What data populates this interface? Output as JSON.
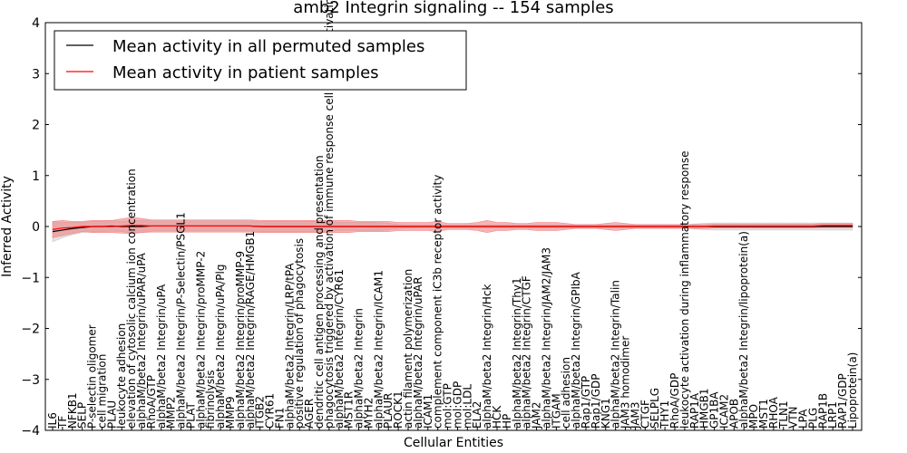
{
  "chart_data": {
    "type": "line",
    "title": "amb2 Integrin signaling -- 154 samples",
    "xlabel": "Cellular Entities",
    "ylabel": "Inferred Activity",
    "ylim": [
      -4,
      4
    ],
    "yticks": [
      "4",
      "3",
      "2",
      "1",
      "0",
      "−1",
      "−2",
      "−3",
      "−4"
    ],
    "legend_position": "top-left",
    "legend": [
      {
        "label": "Mean activity in all permuted samples",
        "color": "#000000"
      },
      {
        "label": "Mean activity in patient samples",
        "color": "#ff0000"
      }
    ],
    "band_colors": {
      "patient": "#f08080",
      "permuted": "#c0c0c0"
    },
    "categories": [
      "IL6",
      "TF",
      "NFKB1",
      "SELP",
      "P-selectin oligomer",
      "cell migration",
      "PLAU",
      "leukocyte adhesion",
      "elevation of cytosolic calcium ion concentration",
      "alphaM/beta2 Integrin/uPAR/uPA",
      "RhoA/GTP",
      "alphaM/beta2 Integrin/uPA",
      "MMP2",
      "alphaM/beta2 Integrin/P-Selectin/PSGL1",
      "PLAT",
      "alphaM/beta2 Integrin/proMMP-2",
      "fibrinolysis",
      "alphaM/beta2 Integrin/uPA/Plg",
      "MMP9",
      "alphaM/beta2 Integrin/proMMP-9",
      "alphaM/beta2 Integrin/RAGE/HMGB1",
      "ITGB2",
      "CYR61",
      "FN1",
      "alphaM/beta2 Integrin/LRP/tPA",
      "positive regulation of phagocytosis",
      "AGER",
      "dendritic cell antigen processing and presentation",
      "phagocytosis triggered by activation of immune response cell surface activating receptor",
      "alphaM/beta2 Integrin/CYR61",
      "MST1R",
      "alphaM/beta2 Integrin",
      "MYH2",
      "alphaM/beta2 Integrin/ICAM1",
      "PLAUR",
      "ROCK1",
      "actin filament polymerization",
      "alphaM/beta2 Integrin/uPAR",
      "ICAM1",
      "complement component iC3b receptor activity",
      "mol:GTP",
      "mol:GDP",
      "mol:LDL",
      "ELA2",
      "alphaM/beta2 Integrin/Hck",
      "HCK",
      "HP",
      "alphaM/beta2 Integrin/Thy1",
      "alphaM/beta2 Integrin/CTGF",
      "JAM2",
      "alphaM/beta2 Integrin/JAM2/JAM3",
      "ITGAM",
      "cell adhesion",
      "alphaM/beta2 Integrin/GPIbA",
      "Rap1/GTP",
      "Rap1/GDP",
      "KNG1",
      "alphaM/beta2 Integrin/Talin",
      "JAM3 homodimer",
      "JAM3",
      "CTGF",
      "SELPLG",
      "THY1",
      "RhoA/GDP",
      "leukocyte activation during inflammatory response",
      "RAP1A",
      "HMGB1",
      "GP1BA",
      "ICAM2",
      "APOB",
      "alphaM/beta2 Integrin/lipoprotein(a)",
      "MPO",
      "MST1",
      "RHOA",
      "TLN1",
      "VTN",
      "LPA",
      "PLG",
      "RAP1B",
      "LRP1",
      "RAP1/GDP",
      "Lipoprotein(a)"
    ],
    "series": [
      {
        "name": "Mean activity in all permuted samples",
        "values": [
          -0.1,
          -0.07,
          -0.04,
          -0.02,
          0.0,
          0.0,
          0.01,
          0.0,
          0.0,
          0.0,
          0.01,
          0.01,
          0.01,
          0.01,
          0.01,
          0.01,
          0.01,
          0.01,
          0.01,
          0.01,
          0.01,
          0.0,
          0.0,
          0.0,
          0.0,
          0.0,
          0.0,
          0.0,
          0.0,
          0.0,
          0.0,
          0.0,
          0.0,
          0.0,
          0.0,
          0.0,
          0.0,
          0.0,
          0.0,
          0.0,
          0.0,
          0.0,
          0.0,
          0.0,
          0.0,
          0.0,
          0.0,
          0.0,
          0.0,
          0.0,
          0.0,
          0.0,
          0.0,
          0.0,
          0.0,
          0.0,
          0.0,
          0.0,
          0.0,
          0.0,
          0.0,
          0.0,
          0.0,
          0.0,
          0.0,
          0.0,
          0.0,
          0.0,
          0.0,
          0.0,
          0.0,
          0.0,
          0.0,
          0.0,
          0.0,
          0.0,
          0.0,
          0.0,
          0.0,
          0.0,
          0.0,
          0.0
        ],
        "band": [
          0.2,
          0.15,
          0.12,
          0.1,
          0.1,
          0.1,
          0.1,
          0.1,
          0.12,
          0.12,
          0.1,
          0.1,
          0.1,
          0.1,
          0.1,
          0.1,
          0.1,
          0.1,
          0.1,
          0.1,
          0.1,
          0.1,
          0.1,
          0.1,
          0.1,
          0.1,
          0.1,
          0.1,
          0.1,
          0.08,
          0.08,
          0.08,
          0.08,
          0.08,
          0.06,
          0.04,
          0.03,
          0.03,
          0.03,
          0.03,
          0.03,
          0.03,
          0.03,
          0.03,
          0.03,
          0.03,
          0.03,
          0.03,
          0.03,
          0.03,
          0.03,
          0.03,
          0.03,
          0.03,
          0.03,
          0.03,
          0.03,
          0.03,
          0.03,
          0.03,
          0.03,
          0.03,
          0.03,
          0.03,
          0.03,
          0.05,
          0.06,
          0.07,
          0.07,
          0.07,
          0.07,
          0.07,
          0.07,
          0.07,
          0.07,
          0.07,
          0.07,
          0.07,
          0.07,
          0.07,
          0.07,
          0.07
        ]
      },
      {
        "name": "Mean activity in patient samples",
        "values": [
          -0.06,
          -0.03,
          -0.02,
          0.0,
          0.0,
          0.0,
          0.0,
          0.01,
          0.02,
          0.02,
          0.01,
          0.01,
          0.01,
          0.01,
          0.01,
          0.01,
          0.01,
          0.01,
          0.01,
          0.01,
          0.01,
          0.0,
          0.0,
          0.0,
          0.0,
          0.0,
          0.0,
          0.0,
          0.0,
          0.0,
          0.0,
          0.0,
          0.0,
          0.0,
          0.0,
          0.0,
          0.0,
          0.0,
          0.0,
          0.0,
          0.0,
          0.0,
          0.0,
          0.0,
          0.0,
          0.0,
          0.0,
          0.0,
          0.0,
          0.0,
          0.0,
          0.0,
          0.0,
          0.0,
          0.0,
          0.0,
          0.0,
          0.0,
          0.0,
          0.0,
          0.0,
          0.0,
          0.0,
          0.0,
          0.0,
          0.0,
          0.0,
          0.01,
          0.01,
          0.01,
          0.01,
          0.01,
          0.01,
          0.01,
          0.01,
          0.01,
          0.01,
          0.01,
          0.02,
          0.02,
          0.02,
          0.02
        ],
        "band": [
          0.16,
          0.15,
          0.12,
          0.1,
          0.12,
          0.12,
          0.12,
          0.14,
          0.16,
          0.14,
          0.12,
          0.12,
          0.12,
          0.12,
          0.12,
          0.12,
          0.12,
          0.12,
          0.12,
          0.12,
          0.12,
          0.12,
          0.12,
          0.12,
          0.12,
          0.12,
          0.12,
          0.12,
          0.12,
          0.12,
          0.12,
          0.1,
          0.1,
          0.1,
          0.1,
          0.08,
          0.08,
          0.08,
          0.08,
          0.1,
          0.06,
          0.06,
          0.06,
          0.08,
          0.12,
          0.08,
          0.08,
          0.06,
          0.06,
          0.08,
          0.08,
          0.08,
          0.06,
          0.04,
          0.04,
          0.04,
          0.06,
          0.08,
          0.06,
          0.04,
          0.04,
          0.04,
          0.04,
          0.04,
          0.04,
          0.04,
          0.04,
          0.04,
          0.04,
          0.04,
          0.04,
          0.04,
          0.04,
          0.04,
          0.04,
          0.04,
          0.04,
          0.04,
          0.04,
          0.04,
          0.04,
          0.04
        ]
      }
    ]
  }
}
